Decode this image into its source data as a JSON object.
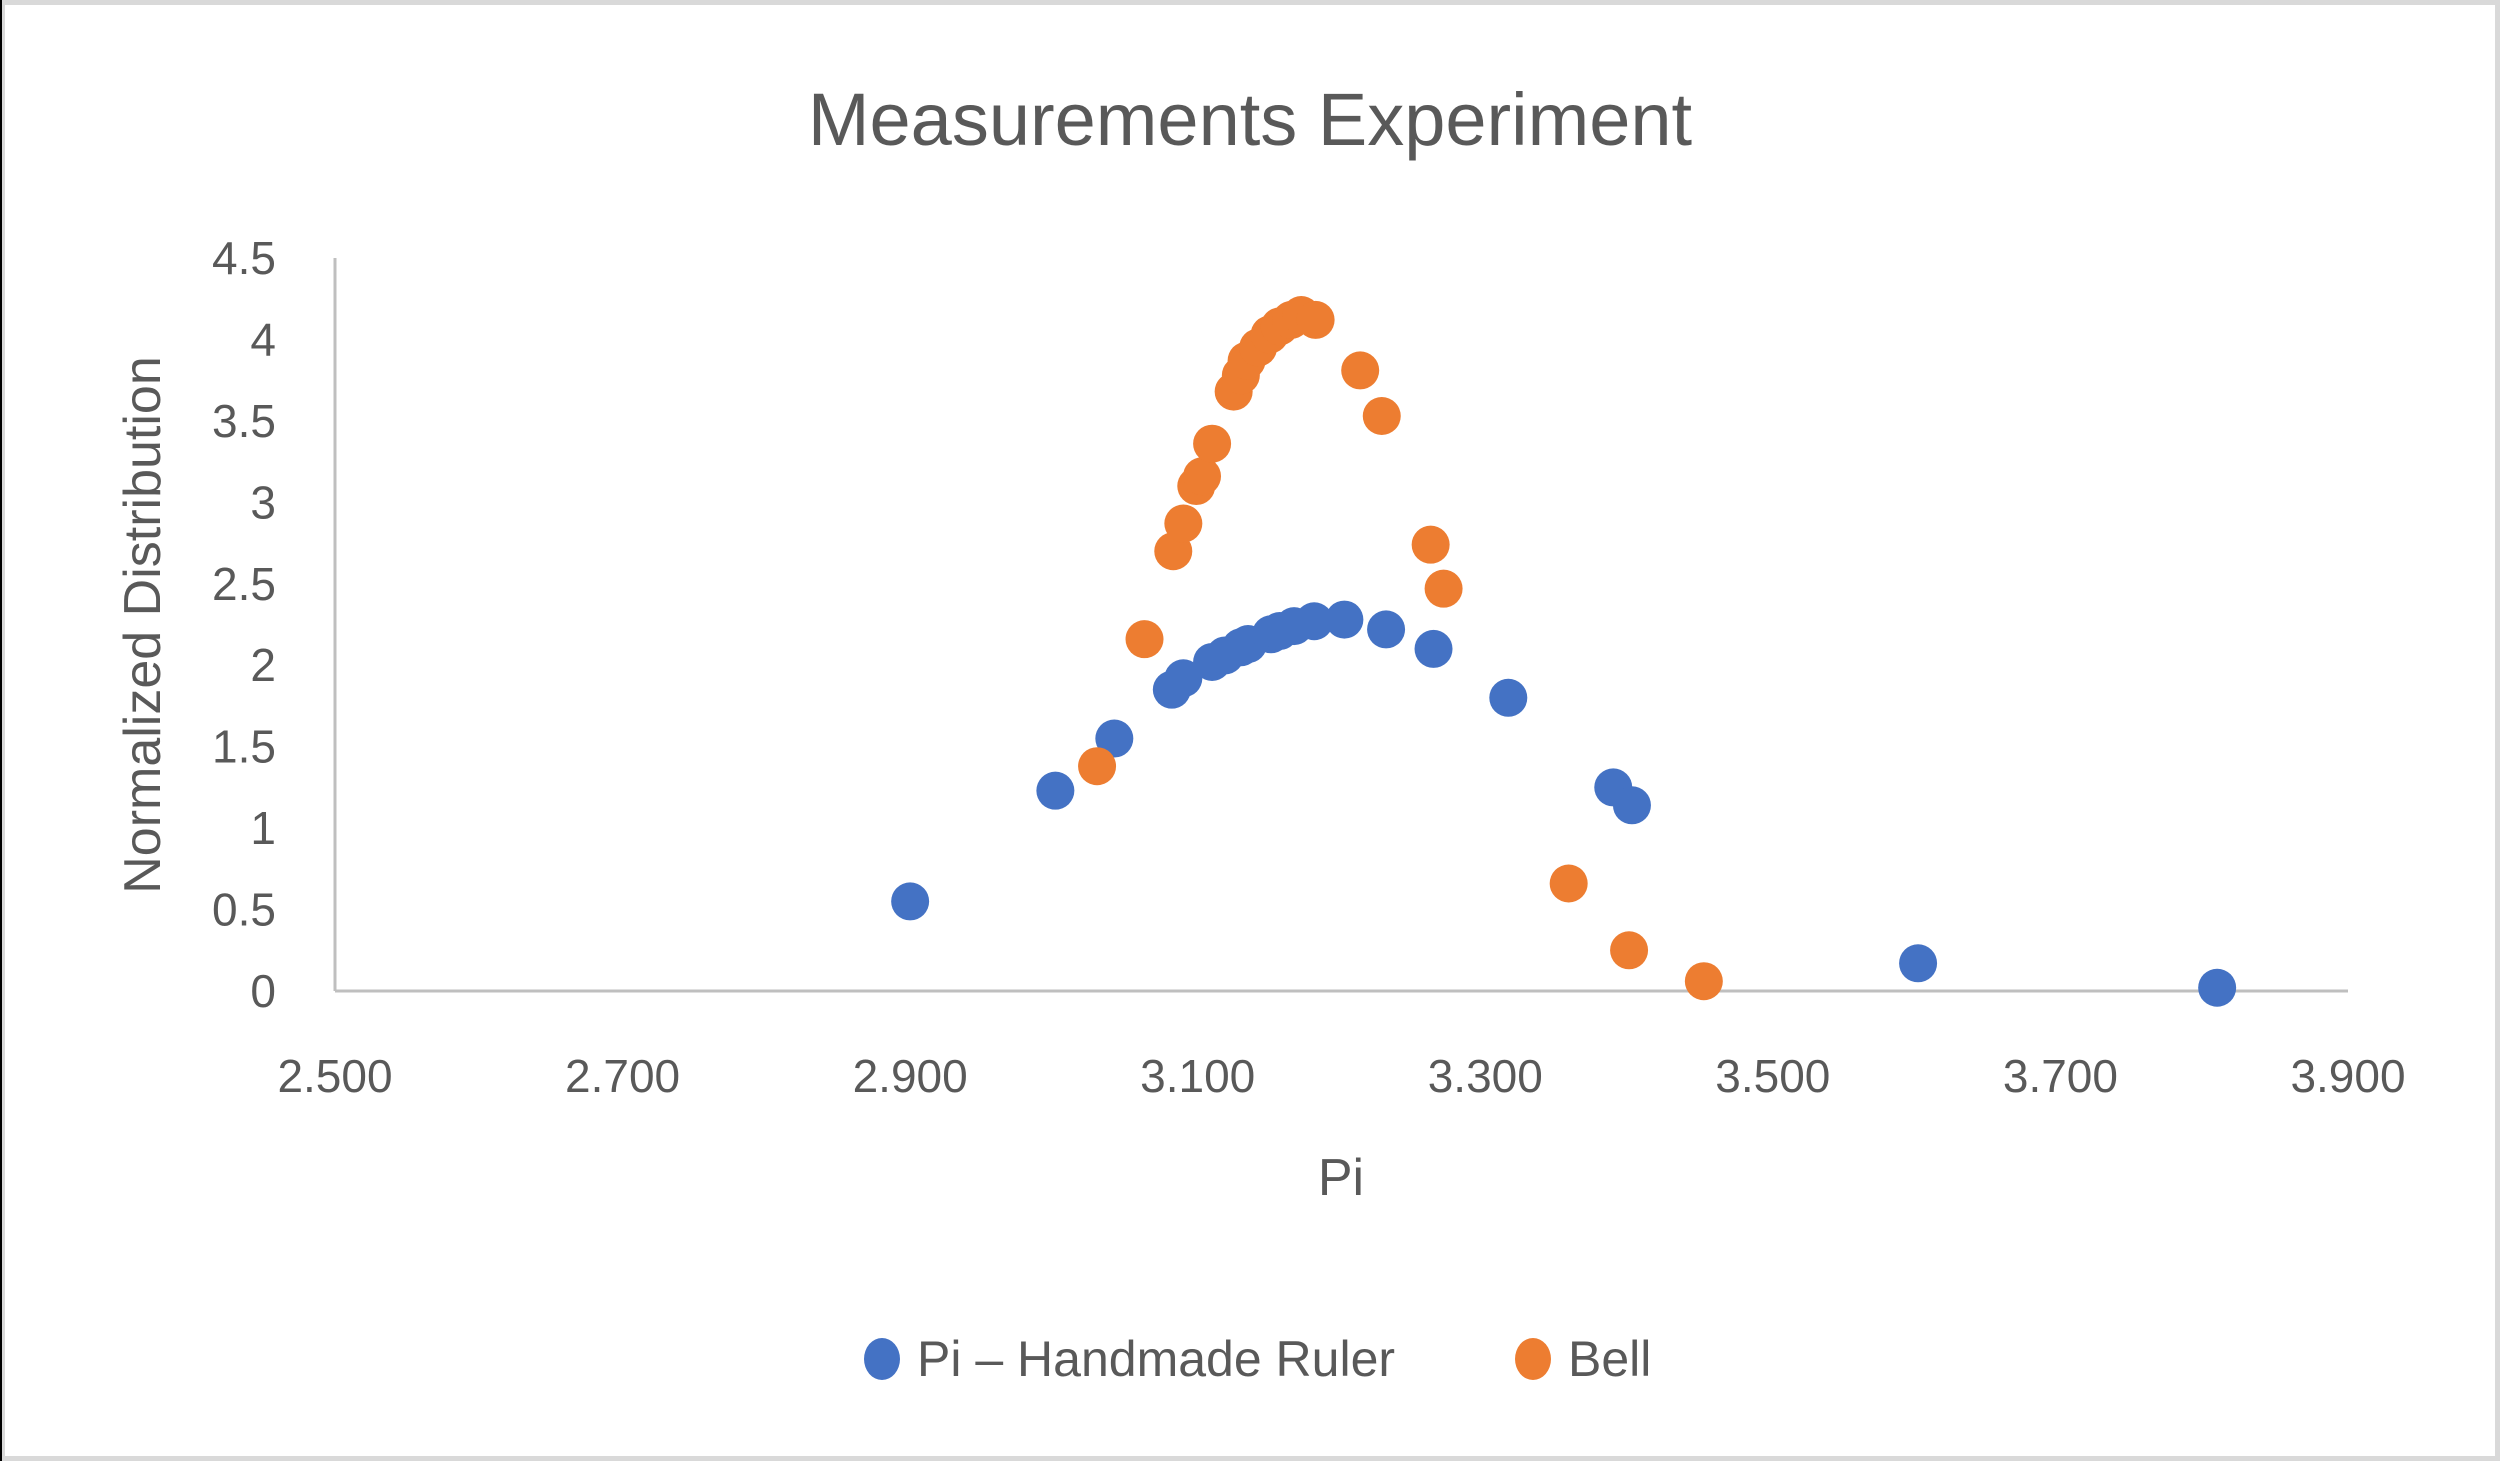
{
  "chart_data": {
    "type": "scatter",
    "title": "Measurements Experiment",
    "xlabel": "Pi",
    "ylabel": "Normalized Distribution",
    "xlim": [
      2.5,
      3.9
    ],
    "ylim": [
      0,
      4.5
    ],
    "x_ticks": [
      "2.500",
      "2.700",
      "2.900",
      "3.100",
      "3.300",
      "3.500",
      "3.700",
      "3.900"
    ],
    "x_tick_values": [
      2.5,
      2.7,
      2.9,
      3.1,
      3.3,
      3.5,
      3.7,
      3.9
    ],
    "y_ticks": [
      "0",
      "0.5",
      "1",
      "1.5",
      "2",
      "2.5",
      "3",
      "3.5",
      "4",
      "4.5"
    ],
    "y_tick_values": [
      0,
      0.5,
      1,
      1.5,
      2,
      2.5,
      3,
      3.5,
      4,
      4.5
    ],
    "grid": false,
    "legend_position": "bottom",
    "series": [
      {
        "name": "Pi – Handmade Ruler",
        "color": "#4472c4",
        "x": [
          2.9,
          3.001,
          3.042,
          3.082,
          3.09,
          3.11,
          3.119,
          3.13,
          3.135,
          3.151,
          3.157,
          3.167,
          3.181,
          3.202,
          3.231,
          3.264,
          3.316,
          3.389,
          3.402,
          3.601,
          3.809
        ],
        "y": [
          0.55,
          1.23,
          1.55,
          1.85,
          1.92,
          2.02,
          2.06,
          2.11,
          2.13,
          2.19,
          2.21,
          2.24,
          2.27,
          2.28,
          2.22,
          2.1,
          1.8,
          1.25,
          1.14,
          0.17,
          0.02
        ]
      },
      {
        "name": "Bell",
        "color": "#ed7d31",
        "x": [
          3.03,
          3.063,
          3.083,
          3.09,
          3.099,
          3.103,
          3.11,
          3.125,
          3.13,
          3.134,
          3.142,
          3.15,
          3.157,
          3.165,
          3.172,
          3.182,
          3.213,
          3.228,
          3.262,
          3.271,
          3.358,
          3.4,
          3.452
        ],
        "y": [
          1.38,
          2.16,
          2.7,
          2.87,
          3.1,
          3.16,
          3.36,
          3.68,
          3.78,
          3.87,
          3.95,
          4.03,
          4.08,
          4.12,
          4.15,
          4.12,
          3.81,
          3.53,
          2.74,
          2.47,
          0.66,
          0.25,
          0.06
        ]
      }
    ]
  },
  "colors": {
    "text": "#595959",
    "axis": "#bfbfbf",
    "border": "#d9d9d9"
  }
}
